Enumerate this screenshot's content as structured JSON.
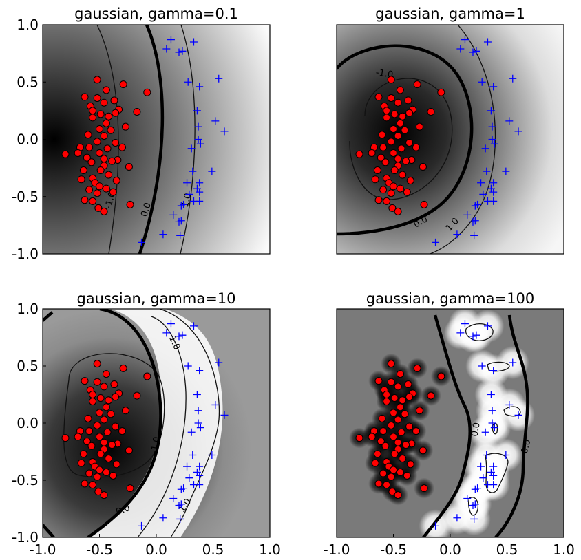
{
  "chart_data": [
    {
      "type": "contour",
      "title": "gaussian, gamma=0.1",
      "xlim": [
        -1.0,
        1.0
      ],
      "ylim": [
        -1.0,
        1.0
      ],
      "y_tick_labels": [
        "1.0",
        "0.5",
        "0.0",
        "-0.5",
        "-1.0"
      ],
      "x_tick_labels": [],
      "contour_levels": [
        -1.0,
        0.0,
        1.0
      ],
      "contour_labels": [
        "-1.0",
        "0.0",
        "1.0"
      ],
      "colormap": "gray"
    },
    {
      "type": "contour",
      "title": "gaussian, gamma=1",
      "xlim": [
        -1.0,
        1.0
      ],
      "ylim": [
        -1.0,
        1.0
      ],
      "y_tick_labels": [],
      "x_tick_labels": [],
      "contour_levels": [
        -1.0,
        0.0,
        1.0
      ],
      "contour_labels": [
        "-1.0",
        "0.0",
        "1.0"
      ],
      "colormap": "gray"
    },
    {
      "type": "contour",
      "title": "gaussian, gamma=10",
      "xlim": [
        -1.0,
        1.0
      ],
      "ylim": [
        -1.0,
        1.0
      ],
      "y_tick_labels": [
        "1.0",
        "0.5",
        "0.0",
        "-0.5",
        "-1.0"
      ],
      "x_tick_labels": [
        "-1.0",
        "-0.5",
        "0.0",
        "0.5",
        "1.0"
      ],
      "contour_levels": [
        -1.0,
        0.0,
        1.0
      ],
      "contour_labels": [
        "-1.0",
        "0.0",
        "1.0",
        "1.0"
      ],
      "colormap": "gray"
    },
    {
      "type": "contour",
      "title": "gaussian, gamma=100",
      "xlim": [
        -1.0,
        1.0
      ],
      "ylim": [
        -1.0,
        1.0
      ],
      "y_tick_labels": [],
      "x_tick_labels": [
        "-1.0",
        "-0.5",
        "0.0",
        "0.5",
        "1.0"
      ],
      "contour_levels": [
        -1.0,
        0.0,
        1.0
      ],
      "contour_labels": [
        "0.0",
        "0.0"
      ],
      "colormap": "gray"
    }
  ],
  "points": {
    "class_a_marker": "circle",
    "class_a_color": "#ff0000",
    "class_b_marker": "plus",
    "class_b_color": "#0000ff",
    "class_a": [
      [
        -0.52,
        0.52
      ],
      [
        -0.29,
        0.48
      ],
      [
        -0.44,
        0.43
      ],
      [
        -0.08,
        0.41
      ],
      [
        -0.63,
        0.37
      ],
      [
        -0.52,
        0.36
      ],
      [
        -0.37,
        0.34
      ],
      [
        -0.46,
        0.32
      ],
      [
        -0.58,
        0.29
      ],
      [
        -0.56,
        0.25
      ],
      [
        -0.33,
        0.26
      ],
      [
        -0.17,
        0.24
      ],
      [
        -0.49,
        0.22
      ],
      [
        -0.36,
        0.23
      ],
      [
        -0.42,
        0.2
      ],
      [
        -0.56,
        0.19
      ],
      [
        -0.44,
        0.14
      ],
      [
        -0.27,
        0.11
      ],
      [
        -0.5,
        0.09
      ],
      [
        -0.4,
        0.08
      ],
      [
        -0.6,
        0.04
      ],
      [
        -0.46,
        0.03
      ],
      [
        -0.52,
        -0.02
      ],
      [
        -0.36,
        -0.03
      ],
      [
        -0.3,
        -0.07
      ],
      [
        -0.59,
        -0.07
      ],
      [
        -0.43,
        -0.08
      ],
      [
        -0.67,
        -0.07
      ],
      [
        -0.8,
        -0.13
      ],
      [
        -0.69,
        -0.12
      ],
      [
        -0.5,
        -0.12
      ],
      [
        -0.61,
        -0.16
      ],
      [
        -0.46,
        -0.17
      ],
      [
        -0.34,
        -0.18
      ],
      [
        -0.39,
        -0.19
      ],
      [
        -0.57,
        -0.2
      ],
      [
        -0.46,
        -0.23
      ],
      [
        -0.24,
        -0.24
      ],
      [
        -0.64,
        -0.27
      ],
      [
        -0.49,
        -0.27
      ],
      [
        -0.42,
        -0.31
      ],
      [
        -0.56,
        -0.34
      ],
      [
        -0.35,
        -0.36
      ],
      [
        -0.66,
        -0.35
      ],
      [
        -0.54,
        -0.38
      ],
      [
        -0.5,
        -0.41
      ],
      [
        -0.44,
        -0.43
      ],
      [
        -0.59,
        -0.44
      ],
      [
        -0.52,
        -0.47
      ],
      [
        -0.38,
        -0.46
      ],
      [
        -0.63,
        -0.53
      ],
      [
        -0.56,
        -0.54
      ],
      [
        -0.23,
        -0.57
      ],
      [
        -0.51,
        -0.6
      ],
      [
        -0.46,
        -0.63
      ]
    ],
    "class_b": [
      [
        0.13,
        0.87
      ],
      [
        0.33,
        0.85
      ],
      [
        0.09,
        0.79
      ],
      [
        0.23,
        0.77
      ],
      [
        0.2,
        0.76
      ],
      [
        0.28,
        0.5
      ],
      [
        0.38,
        0.46
      ],
      [
        0.55,
        0.53
      ],
      [
        0.36,
        0.25
      ],
      [
        0.52,
        0.16
      ],
      [
        0.37,
        0.11
      ],
      [
        0.6,
        0.07
      ],
      [
        0.37,
        0.0
      ],
      [
        0.39,
        -0.04
      ],
      [
        0.31,
        -0.08
      ],
      [
        0.32,
        -0.28
      ],
      [
        0.49,
        -0.28
      ],
      [
        0.38,
        -0.38
      ],
      [
        0.27,
        -0.38
      ],
      [
        0.36,
        -0.43
      ],
      [
        0.38,
        -0.46
      ],
      [
        0.29,
        -0.48
      ],
      [
        0.33,
        -0.54
      ],
      [
        0.38,
        -0.54
      ],
      [
        0.24,
        -0.57
      ],
      [
        0.22,
        -0.58
      ],
      [
        0.15,
        -0.66
      ],
      [
        0.2,
        -0.72
      ],
      [
        0.22,
        -0.71
      ],
      [
        0.06,
        -0.83
      ],
      [
        0.21,
        -0.84
      ],
      [
        -0.13,
        -0.9
      ]
    ]
  }
}
